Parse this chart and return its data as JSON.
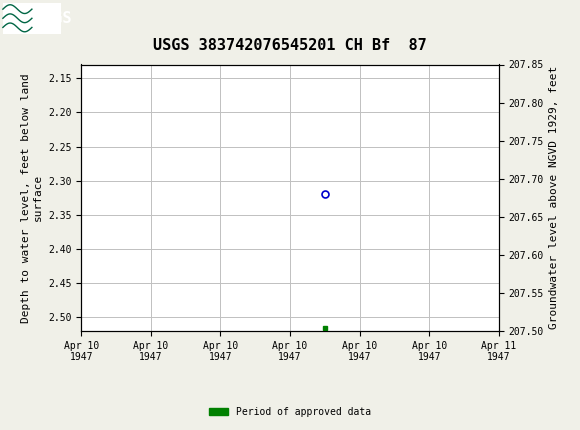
{
  "title": "USGS 383742076545201 CH Bf  87",
  "left_ylabel_lines": [
    "Depth to water level, feet below land",
    "surface"
  ],
  "right_ylabel": "Groundwater level above NGVD 1929, feet",
  "ylim_left_top": 2.13,
  "ylim_left_bottom": 2.52,
  "left_yticks": [
    2.15,
    2.2,
    2.25,
    2.3,
    2.35,
    2.4,
    2.45,
    2.5
  ],
  "right_yticks": [
    207.85,
    207.8,
    207.75,
    207.7,
    207.65,
    207.6,
    207.55,
    207.5
  ],
  "xlim": [
    0,
    6
  ],
  "xtick_positions": [
    0,
    1,
    2,
    3,
    4,
    5,
    6
  ],
  "xtick_labels": [
    "Apr 10\n1947",
    "Apr 10\n1947",
    "Apr 10\n1947",
    "Apr 10\n1947",
    "Apr 10\n1947",
    "Apr 10\n1947",
    "Apr 11\n1947"
  ],
  "data_point_x": 3.5,
  "data_point_y": 2.32,
  "green_marker_x": 3.5,
  "green_marker_y": 2.515,
  "header_color": "#006644",
  "background_color": "#f0f0e8",
  "plot_bg_color": "#ffffff",
  "grid_color": "#c0c0c0",
  "data_point_color": "#0000cc",
  "green_marker_color": "#008000",
  "title_fontsize": 11,
  "axis_label_fontsize": 8,
  "tick_label_fontsize": 7,
  "legend_label": "Period of approved data",
  "font_family": "DejaVu Sans Mono"
}
